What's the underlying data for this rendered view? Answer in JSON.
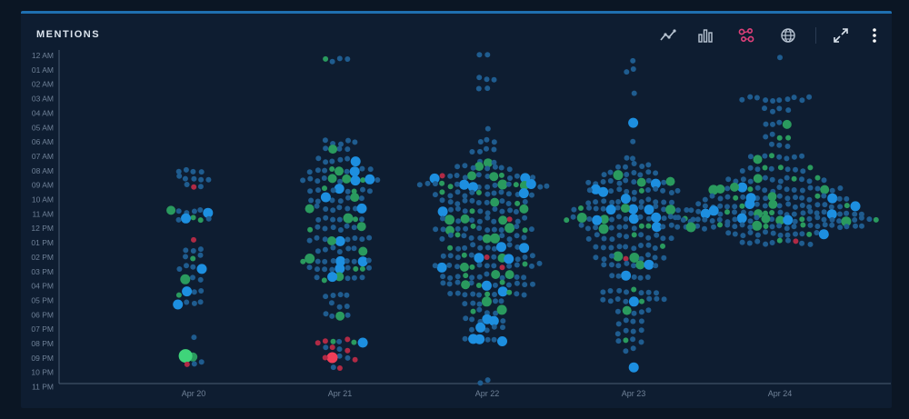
{
  "panel": {
    "title": "MENTIONS"
  },
  "toolbar": {
    "buttons": [
      {
        "name": "line-chart-icon",
        "active": false
      },
      {
        "name": "bar-chart-icon",
        "active": false
      },
      {
        "name": "bubble-chart-icon",
        "active": true
      },
      {
        "name": "globe-icon",
        "active": false
      },
      {
        "name": "expand-icon",
        "active": false
      },
      {
        "name": "more-vertical-icon",
        "active": false
      }
    ],
    "active_color": "#e0407a",
    "icon_color": "#b8c4d2"
  },
  "colors": {
    "background": "#0b1624",
    "panel": "#0e1d31",
    "accent": "#1f6fb0",
    "neutral": "#1f5c8f",
    "highlight": "#1d8fe0",
    "positive": "#2a9a5e",
    "positive_bright": "#3fd47a",
    "negative": "#b02a45",
    "negative_bright": "#ef3e58"
  },
  "chart_data": {
    "type": "scatter",
    "title": "",
    "xlabel": "",
    "ylabel": "",
    "x_categories": [
      "Apr 20",
      "Apr 21",
      "Apr 22",
      "Apr 23",
      "Apr 24"
    ],
    "y_ticks": [
      "12 AM",
      "01 AM",
      "02 AM",
      "03 AM",
      "04 AM",
      "05 AM",
      "06 AM",
      "07 AM",
      "08 AM",
      "09 AM",
      "10 AM",
      "11 AM",
      "12 PM",
      "01 PM",
      "02 PM",
      "03 PM",
      "04 PM",
      "05 PM",
      "06 PM",
      "07 PM",
      "08 PM",
      "09 PM",
      "10 PM",
      "11 PM"
    ],
    "ylim": [
      0,
      23
    ],
    "grid": false,
    "series": [
      {
        "sentiment": "neutral",
        "color": "#1f5c8f"
      },
      {
        "sentiment": "positive",
        "color": "#2a9a5e"
      },
      {
        "sentiment": "negative",
        "color": "#b02a45"
      }
    ],
    "columns": [
      {
        "day": "Apr 20",
        "groups": [
          {
            "hour": 8.0,
            "count": 4
          },
          {
            "hour": 8.5,
            "count": 5
          },
          {
            "hour": 9.0,
            "count": 3,
            "neg": 1
          },
          {
            "hour": 10.8,
            "count": 6,
            "pos": 1,
            "big": 1
          },
          {
            "hour": 11.3,
            "count": 5,
            "pos": 2,
            "big": 1
          },
          {
            "hour": 12.8,
            "count": 1,
            "neg": 1
          },
          {
            "hour": 13.5,
            "count": 3
          },
          {
            "hour": 14.0,
            "count": 3,
            "pos": 1
          },
          {
            "hour": 14.7,
            "count": 4,
            "big": 1
          },
          {
            "hour": 15.5,
            "count": 3,
            "big": 1
          },
          {
            "hour": 16.5,
            "count": 4,
            "pos": 1,
            "big": 1
          },
          {
            "hour": 17.2,
            "count": 4,
            "big": 1
          },
          {
            "hour": 19.5,
            "count": 1
          },
          {
            "hour": 20.8,
            "count": 1,
            "pos": 1,
            "huge": 1
          },
          {
            "hour": 21.3,
            "count": 3,
            "neg": 1
          }
        ]
      },
      {
        "day": "Apr 21",
        "groups": [
          {
            "hour": 0.3,
            "count": 4,
            "pos": 1
          },
          {
            "hour": 6.0,
            "count": 5
          },
          {
            "hour": 6.5,
            "count": 4,
            "pos": 1
          },
          {
            "hour": 7.3,
            "count": 6,
            "big": 1
          },
          {
            "hour": 8.0,
            "count": 9,
            "pos": 2,
            "big": 1
          },
          {
            "hour": 8.6,
            "count": 11,
            "pos": 3,
            "big": 2
          },
          {
            "hour": 9.3,
            "count": 9,
            "pos": 2,
            "big": 1
          },
          {
            "hour": 10.0,
            "count": 8,
            "pos": 1,
            "big": 1
          },
          {
            "hour": 10.6,
            "count": 8,
            "pos": 1,
            "big": 1
          },
          {
            "hour": 11.3,
            "count": 7,
            "pos": 1,
            "big": 1
          },
          {
            "hour": 12.0,
            "count": 8,
            "pos": 2
          },
          {
            "hour": 12.8,
            "count": 9,
            "pos": 1,
            "big": 1
          },
          {
            "hour": 13.5,
            "count": 7,
            "pos": 1
          },
          {
            "hour": 14.2,
            "count": 10,
            "pos": 1,
            "big": 3
          },
          {
            "hour": 14.8,
            "count": 9,
            "pos": 2,
            "big": 1
          },
          {
            "hour": 15.5,
            "count": 7,
            "pos": 2,
            "big": 1
          },
          {
            "hour": 16.6,
            "count": 4
          },
          {
            "hour": 17.3,
            "count": 3
          },
          {
            "hour": 18.0,
            "count": 4,
            "pos": 1
          },
          {
            "hour": 19.8,
            "count": 7,
            "pos": 2,
            "neg": 3,
            "big": 1
          },
          {
            "hour": 20.4,
            "count": 4,
            "neg": 2
          },
          {
            "hour": 21.0,
            "count": 5,
            "neg": 2,
            "hugeneg": 1
          },
          {
            "hour": 21.6,
            "count": 2,
            "neg": 1
          }
        ]
      },
      {
        "day": "Apr 22",
        "groups": [
          {
            "hour": 0.1,
            "count": 2
          },
          {
            "hour": 1.6,
            "count": 3
          },
          {
            "hour": 2.2,
            "count": 2
          },
          {
            "hour": 5.0,
            "count": 1
          },
          {
            "hour": 6.0,
            "count": 3
          },
          {
            "hour": 6.6,
            "count": 4
          },
          {
            "hour": 7.3,
            "count": 3,
            "pos": 1
          },
          {
            "hour": 7.8,
            "count": 8,
            "pos": 1
          },
          {
            "hour": 8.4,
            "count": 14,
            "pos": 3,
            "neg": 1,
            "big": 2
          },
          {
            "hour": 9.0,
            "count": 18,
            "pos": 4,
            "big": 4
          },
          {
            "hour": 9.6,
            "count": 14,
            "pos": 2,
            "big": 1
          },
          {
            "hour": 10.2,
            "count": 12,
            "pos": 2
          },
          {
            "hour": 10.8,
            "count": 12,
            "pos": 2,
            "big": 1
          },
          {
            "hour": 11.4,
            "count": 12,
            "pos": 2,
            "neg": 1,
            "big": 1
          },
          {
            "hour": 12.0,
            "count": 14,
            "pos": 3,
            "big": 1
          },
          {
            "hour": 12.6,
            "count": 12,
            "pos": 2,
            "big": 1
          },
          {
            "hour": 13.3,
            "count": 11,
            "pos": 1,
            "big": 2
          },
          {
            "hour": 14.0,
            "count": 13,
            "pos": 2,
            "neg": 1,
            "big": 2
          },
          {
            "hour": 14.6,
            "count": 15,
            "pos": 3,
            "neg": 1,
            "big": 1
          },
          {
            "hour": 15.3,
            "count": 12,
            "pos": 3
          },
          {
            "hour": 15.9,
            "count": 13,
            "pos": 3,
            "big": 1
          },
          {
            "hour": 16.5,
            "count": 11,
            "pos": 2,
            "big": 1
          },
          {
            "hour": 17.2,
            "count": 6,
            "big": 1
          },
          {
            "hour": 17.8,
            "count": 5,
            "pos": 1,
            "big": 1
          },
          {
            "hour": 18.4,
            "count": 6,
            "big": 2
          },
          {
            "hour": 19.0,
            "count": 5,
            "big": 1
          },
          {
            "hour": 19.8,
            "count": 6,
            "big": 3
          },
          {
            "hour": 22.6,
            "count": 2
          }
        ]
      },
      {
        "day": "Apr 23",
        "groups": [
          {
            "hour": 0.3,
            "count": 1
          },
          {
            "hour": 1.0,
            "count": 2
          },
          {
            "hour": 2.5,
            "count": 1
          },
          {
            "hour": 4.7,
            "count": 1,
            "big": 1
          },
          {
            "hour": 6.0,
            "count": 1
          },
          {
            "hour": 7.0,
            "count": 2
          },
          {
            "hour": 7.6,
            "count": 5
          },
          {
            "hour": 8.2,
            "count": 8,
            "big": 1
          },
          {
            "hour": 8.8,
            "count": 12,
            "pos": 2,
            "big": 1
          },
          {
            "hour": 9.4,
            "count": 13,
            "pos": 1,
            "big": 2
          },
          {
            "hour": 10.1,
            "count": 12,
            "big": 1
          },
          {
            "hour": 10.6,
            "count": 16,
            "pos": 2,
            "big": 4
          },
          {
            "hour": 11.3,
            "count": 18,
            "pos": 3,
            "big": 4
          },
          {
            "hour": 11.9,
            "count": 15,
            "pos": 2,
            "big": 2
          },
          {
            "hour": 12.6,
            "count": 12,
            "pos": 1
          },
          {
            "hour": 13.3,
            "count": 10,
            "pos": 1
          },
          {
            "hour": 14.0,
            "count": 10,
            "neg": 1,
            "big": 2
          },
          {
            "hour": 14.6,
            "count": 8,
            "pos": 1,
            "big": 1
          },
          {
            "hour": 15.3,
            "count": 6,
            "big": 1
          },
          {
            "hour": 16.4,
            "count": 8,
            "pos": 1
          },
          {
            "hour": 17.0,
            "count": 9,
            "pos": 1,
            "big": 1
          },
          {
            "hour": 17.8,
            "count": 5,
            "pos": 1
          },
          {
            "hour": 18.5,
            "count": 4
          },
          {
            "hour": 19.2,
            "count": 4
          },
          {
            "hour": 19.8,
            "count": 4,
            "pos": 1
          },
          {
            "hour": 20.4,
            "count": 2
          },
          {
            "hour": 21.5,
            "count": 1,
            "big": 1
          }
        ]
      },
      {
        "day": "Apr 24",
        "groups": [
          {
            "hour": 0.0,
            "count": 1
          },
          {
            "hour": 3.0,
            "count": 10
          },
          {
            "hour": 3.8,
            "count": 4
          },
          {
            "hour": 4.8,
            "count": 4,
            "pos": 1
          },
          {
            "hour": 5.6,
            "count": 4,
            "pos": 2
          },
          {
            "hour": 6.3,
            "count": 3
          },
          {
            "hour": 7.1,
            "count": 8,
            "pos": 2
          },
          {
            "hour": 7.9,
            "count": 10,
            "pos": 3
          },
          {
            "hour": 8.6,
            "count": 14,
            "pos": 3
          },
          {
            "hour": 9.3,
            "count": 18,
            "pos": 4,
            "big": 2
          },
          {
            "hour": 9.9,
            "count": 20,
            "pos": 3,
            "big": 2
          },
          {
            "hour": 10.4,
            "count": 22,
            "pos": 3,
            "big": 2
          },
          {
            "hour": 10.9,
            "count": 24,
            "pos": 4,
            "big": 3
          },
          {
            "hour": 11.4,
            "count": 28,
            "pos": 4,
            "big": 3
          },
          {
            "hour": 11.9,
            "count": 24,
            "pos": 3,
            "big": 2
          },
          {
            "hour": 12.4,
            "count": 14,
            "pos": 1,
            "big": 1
          },
          {
            "hour": 13.0,
            "count": 10,
            "pos": 1,
            "neg": 1
          }
        ]
      }
    ]
  }
}
